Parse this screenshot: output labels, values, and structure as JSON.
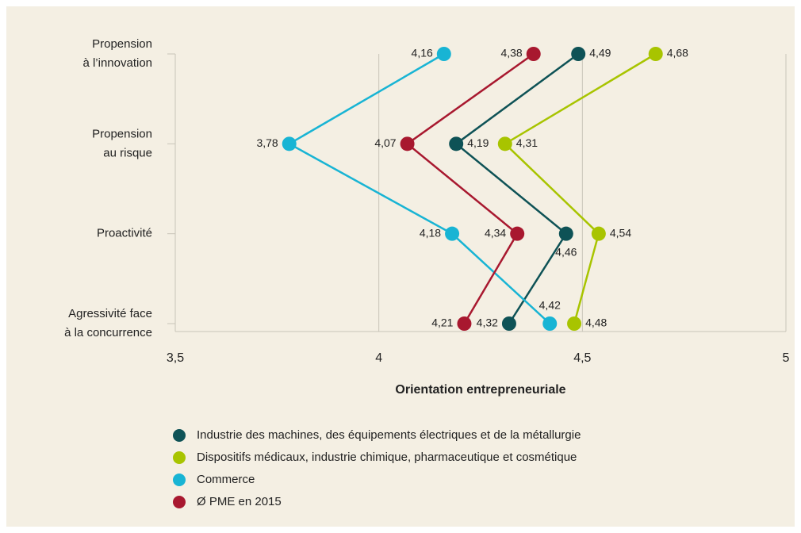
{
  "chart_data": {
    "type": "line",
    "orientation": "horizontal",
    "categories": [
      [
        "Propension",
        "à l’innovation"
      ],
      [
        "Propension",
        "au risque"
      ],
      [
        "Proactivité"
      ],
      [
        "Agressivité face",
        "à la concurrence"
      ]
    ],
    "xlabel": "Orientation entrepreneuriale",
    "xlim": [
      3.5,
      5
    ],
    "xticks": [
      {
        "value": 3.5,
        "label": "3,5"
      },
      4,
      {
        "value": 4.5,
        "label": "4,5"
      },
      5
    ],
    "grid": true,
    "series": [
      {
        "name": "Industrie des machines, des équipements électriques et de la métallurgie",
        "color": "#0e5256",
        "values": [
          4.49,
          4.19,
          4.46,
          4.32
        ],
        "value_labels": [
          "4,49",
          "4,19",
          "4,46",
          "4,32"
        ]
      },
      {
        "name": "Dispositifs médicaux, industrie chimique, pharmaceutique et cosmétique",
        "color": "#a8c400",
        "values": [
          4.68,
          4.31,
          4.54,
          4.48
        ],
        "value_labels": [
          "4,68",
          "4,31",
          "4,54",
          "4,48"
        ]
      },
      {
        "name": "Commerce",
        "color": "#18b4d4",
        "values": [
          4.16,
          3.78,
          4.18,
          4.42
        ],
        "value_labels": [
          "4,16",
          "3,78",
          "4,18",
          "4,42"
        ]
      },
      {
        "name": "Ø PME en 2015",
        "color": "#a8182f",
        "values": [
          4.38,
          4.07,
          4.34,
          4.21
        ],
        "value_labels": [
          "4,38",
          "4,07",
          "4,34",
          "4,21"
        ]
      }
    ]
  }
}
